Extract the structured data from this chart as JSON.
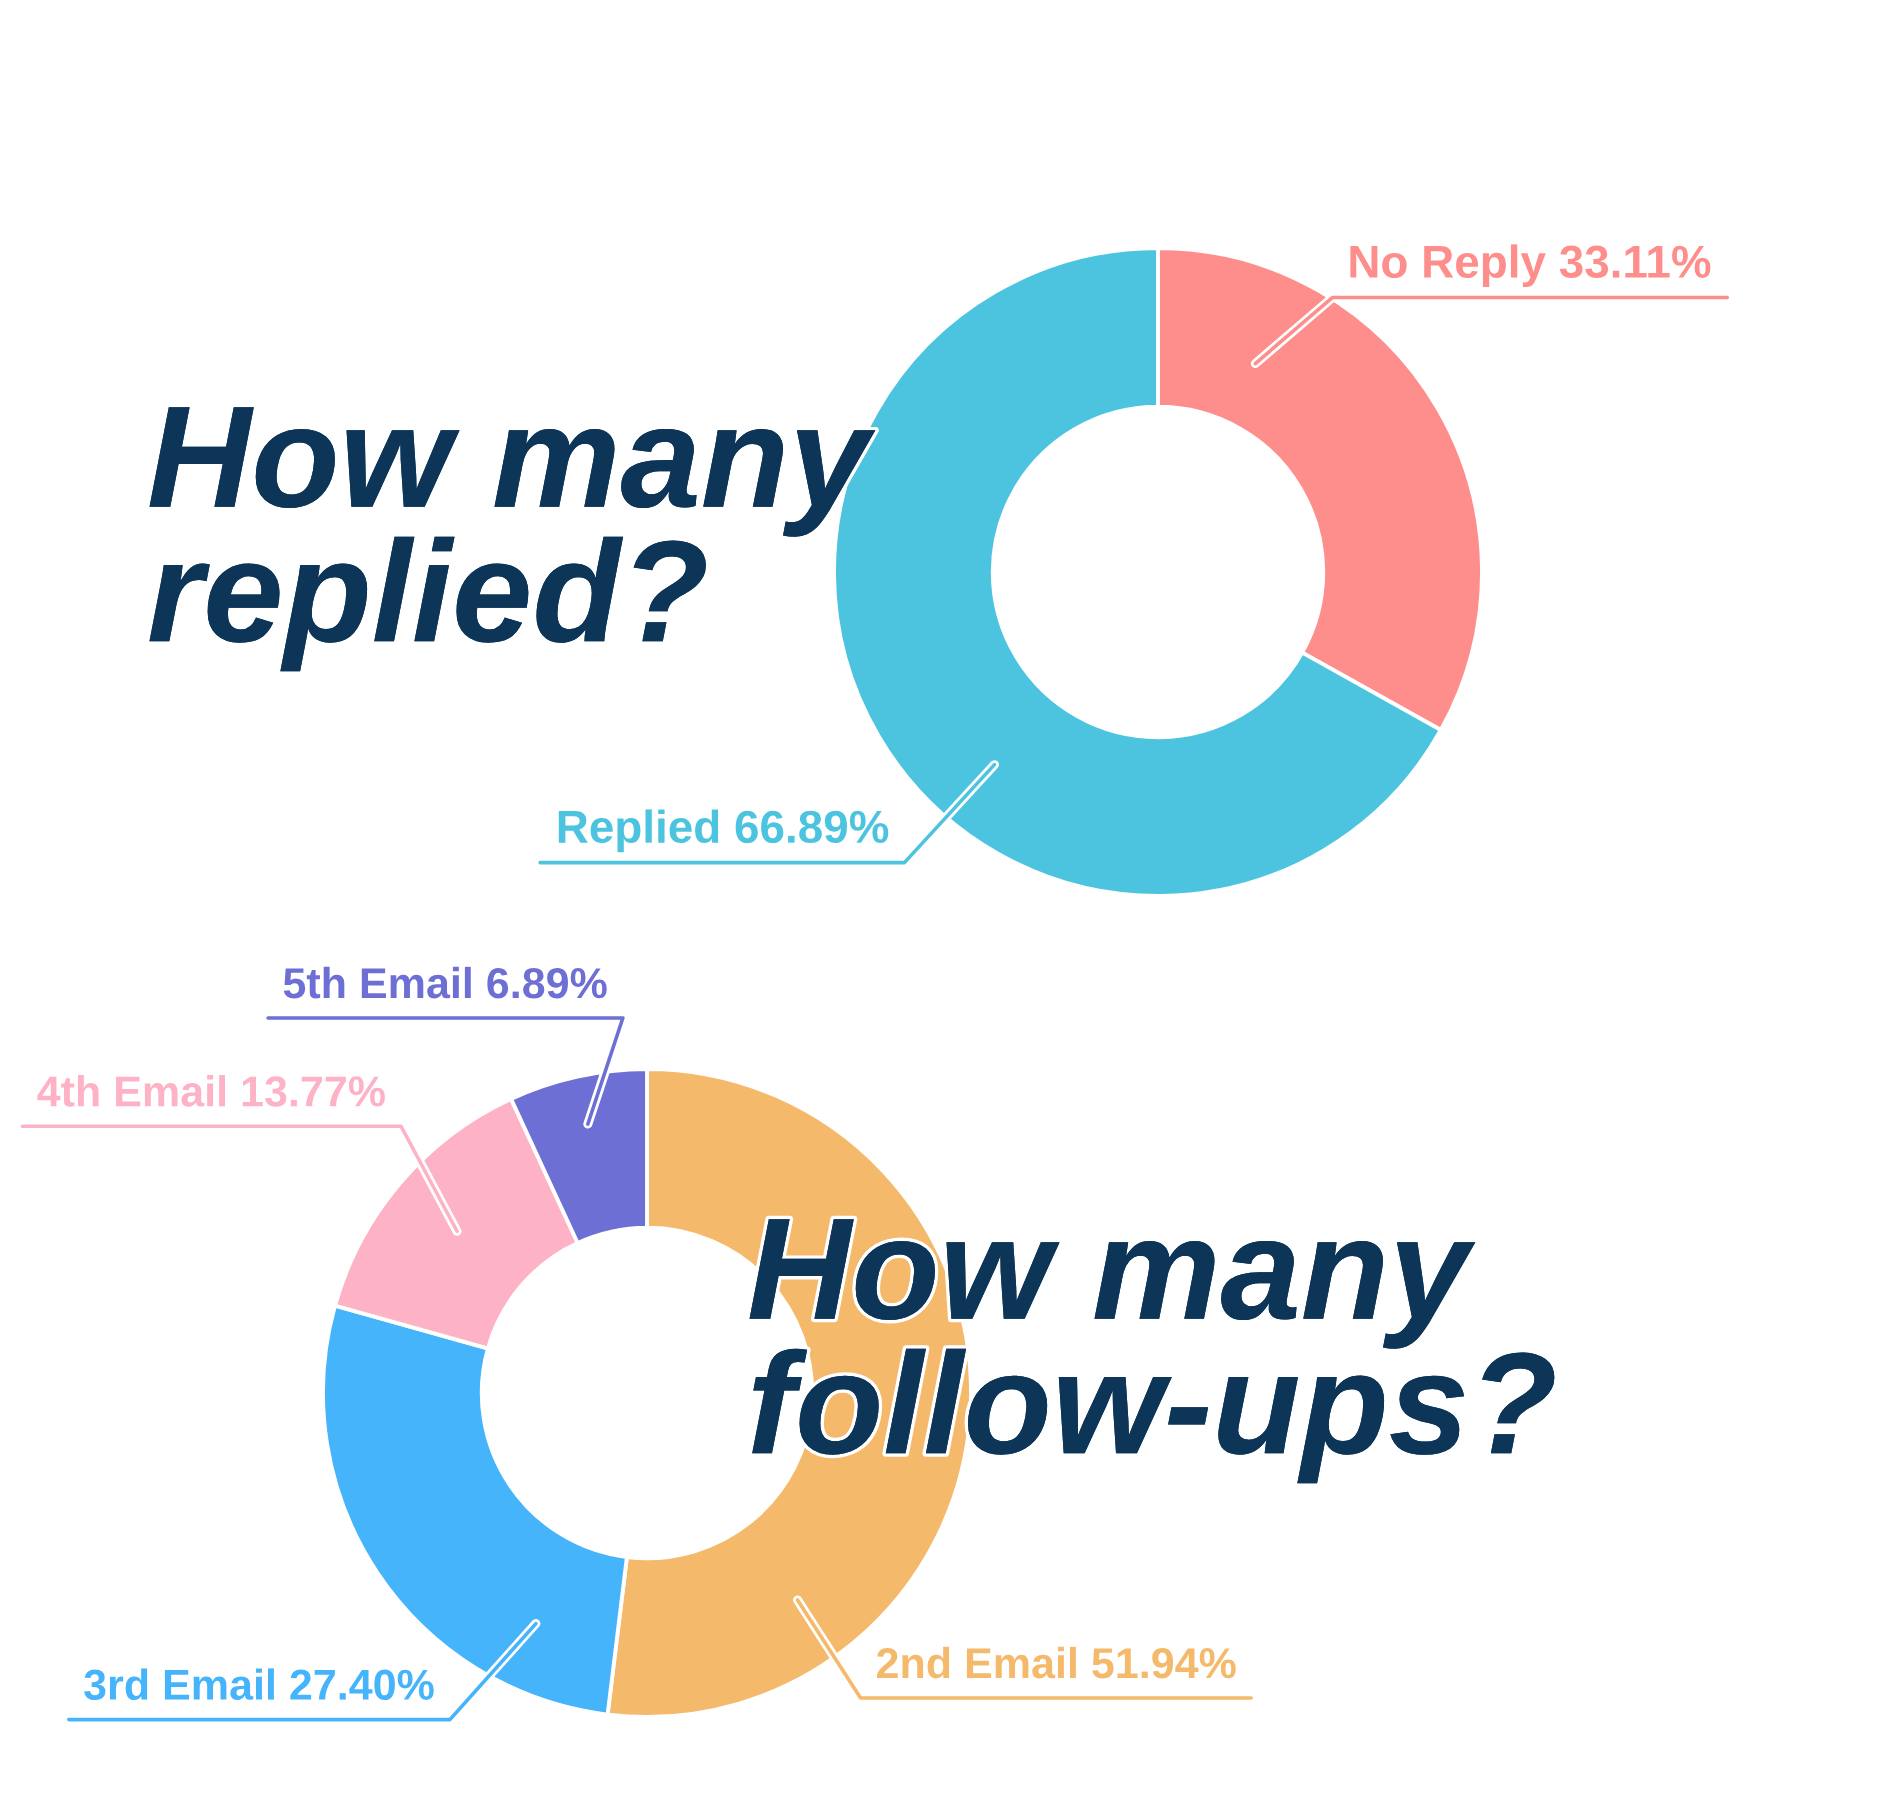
{
  "chart_data": [
    {
      "type": "donut",
      "title": "How many\nreplied?",
      "categories": [
        "No Reply",
        "Replied"
      ],
      "values": [
        33.11,
        66.89
      ],
      "colors": [
        "#fd8e8c",
        "#4cc4df"
      ],
      "value_labels": [
        "33.11%",
        "66.89%"
      ]
    },
    {
      "type": "donut",
      "title": "How many\nfollow-ups?",
      "categories": [
        "2nd Email",
        "3rd Email",
        "4th Email",
        "5th Email"
      ],
      "values": [
        51.94,
        27.4,
        13.77,
        6.89
      ],
      "colors": [
        "#f5b96c",
        "#45b4fb",
        "#fdb2c5",
        "#6d6fd4"
      ],
      "value_labels": [
        "51.94%",
        "27.40%",
        "13.77%",
        "6.89%"
      ]
    }
  ]
}
